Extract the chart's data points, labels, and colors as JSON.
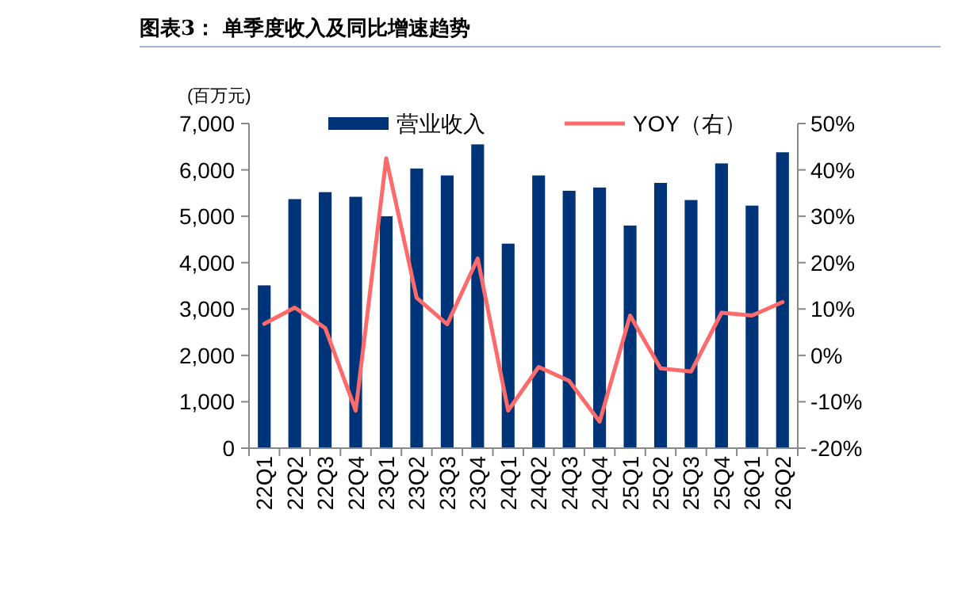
{
  "chart_data": {
    "type": "bar",
    "title": "图表3： 单季度收入及同比增速趋势",
    "ylabel": "(百万元)",
    "categories": [
      "22Q1",
      "22Q2",
      "22Q3",
      "22Q4",
      "23Q1",
      "23Q2",
      "23Q3",
      "23Q4",
      "24Q1",
      "24Q2",
      "24Q3",
      "24Q4",
      "25Q1",
      "25Q2",
      "25Q3",
      "25Q4",
      "26Q1",
      "26Q2"
    ],
    "series": [
      {
        "name": "营业收入",
        "color": "#003478",
        "values": [
          3510,
          5370,
          5520,
          5420,
          5000,
          6030,
          5880,
          6550,
          4410,
          5880,
          5550,
          5620,
          4800,
          5720,
          5350,
          6140,
          5230,
          6380
        ]
      },
      {
        "name": "YOY（右）",
        "type": "line",
        "axis": "y2",
        "color": "#ff6b6b",
        "values": [
          6.8,
          10.3,
          5.9,
          -11.9,
          42.5,
          12.4,
          6.7,
          20.9,
          -11.9,
          -2.5,
          -5.5,
          -14.3,
          8.6,
          -2.8,
          -3.5,
          9.2,
          8.6,
          11.5
        ]
      }
    ],
    "ylim": [
      0,
      7000
    ],
    "yticks": [
      0,
      {
        "value": 1000,
        "label": "1,000"
      },
      {
        "value": 2000,
        "label": "2,000"
      },
      {
        "value": 3000,
        "label": "3,000"
      },
      {
        "value": 4000,
        "label": "4,000"
      },
      {
        "value": 5000,
        "label": "5,000"
      },
      {
        "value": 6000,
        "label": "6,000"
      },
      {
        "value": 7000,
        "label": "7,000"
      }
    ],
    "y2lim": [
      -20,
      50
    ],
    "y2ticks": [
      {
        "value": -20,
        "label": "-20%"
      },
      {
        "value": -10,
        "label": "-10%"
      },
      {
        "value": 0,
        "label": "0%"
      },
      {
        "value": 10,
        "label": "10%"
      },
      {
        "value": 20,
        "label": "20%"
      },
      {
        "value": 30,
        "label": "30%"
      },
      {
        "value": 40,
        "label": "40%"
      },
      {
        "value": 50,
        "label": "50%"
      }
    ],
    "legend": "top",
    "grid": false,
    "marker": "none",
    "line_style": "solid"
  }
}
